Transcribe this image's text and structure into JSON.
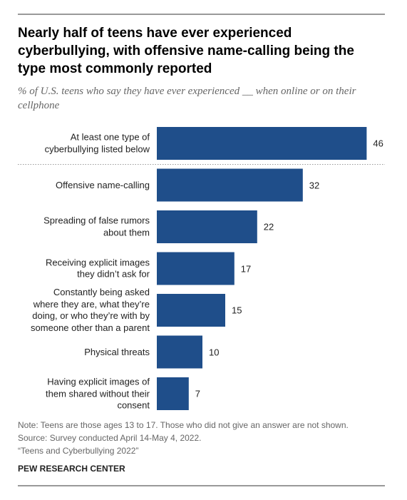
{
  "chart_data": {
    "type": "bar",
    "orientation": "horizontal",
    "title": "Nearly half of teens have ever experienced cyberbullying, with offensive name-calling being the type most commonly reported",
    "subtitle": "% of U.S. teens who say they have ever experienced __ when online or on their cellphone",
    "categories": [
      "At least one type of\ncyberbullying listed below",
      "Offensive name-calling",
      "Spreading of false rumors\nabout them",
      "Receiving explicit images\nthey didn’t ask for",
      "Constantly being asked\nwhere they are, what they’re\ndoing, or who they’re with by\nsomeone other than a parent",
      "Physical threats",
      "Having explicit images of\nthem shared without their\nconsent"
    ],
    "values": [
      46,
      32,
      22,
      17,
      15,
      10,
      7
    ],
    "color": "#1f4e8a",
    "xlim": [
      0,
      50
    ],
    "notes": [
      "Note: Teens are those ages 13 to 17. Those who did not give an answer are not shown.",
      "Source: Survey conducted April 14-May 4, 2022.",
      "“Teens and Cyberbullying 2022”"
    ],
    "source": "PEW RESEARCH CENTER"
  }
}
